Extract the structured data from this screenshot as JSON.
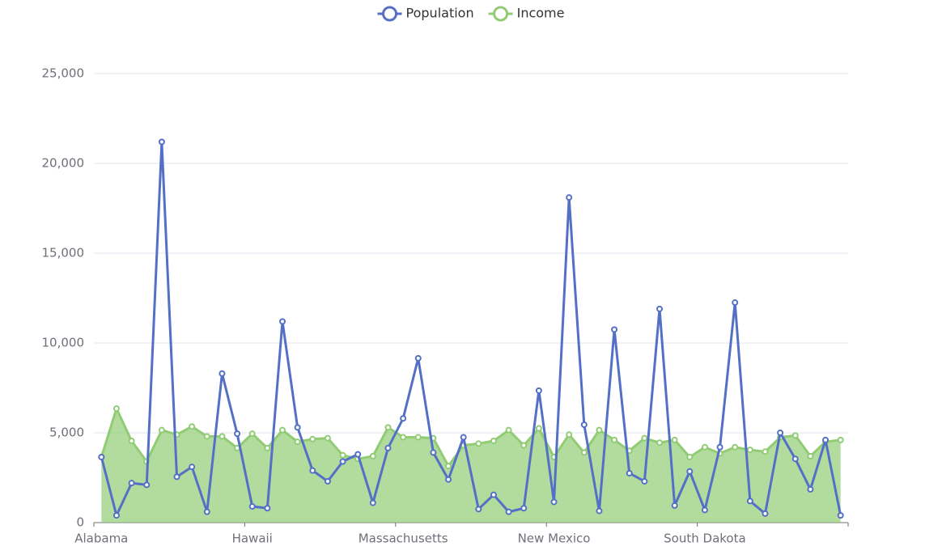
{
  "chart_data": {
    "type": "line",
    "categories": [
      "Alabama",
      null,
      null,
      null,
      null,
      null,
      null,
      null,
      null,
      null,
      "Hawaii",
      null,
      null,
      null,
      null,
      null,
      null,
      null,
      null,
      null,
      "Massachusetts",
      null,
      null,
      null,
      null,
      null,
      null,
      null,
      null,
      null,
      "New Mexico",
      null,
      null,
      null,
      null,
      null,
      null,
      null,
      null,
      null,
      "South Dakota",
      null,
      null,
      null,
      null,
      null,
      null,
      null,
      null,
      null
    ],
    "series": [
      {
        "name": "Population",
        "color": "#5470c6",
        "values": [
          3650,
          400,
          2200,
          2100,
          21200,
          2550,
          3100,
          600,
          8300,
          4950,
          900,
          800,
          11200,
          5300,
          2900,
          2300,
          3400,
          3800,
          1100,
          4150,
          5800,
          9150,
          3900,
          2400,
          4750,
          750,
          1550,
          600,
          800,
          7350,
          1150,
          18100,
          5450,
          650,
          10750,
          2750,
          2300,
          11900,
          950,
          2850,
          700,
          4200,
          12250,
          1200,
          500,
          5000,
          3550,
          1850,
          4600,
          400
        ]
      },
      {
        "name": "Income",
        "color": "#91cc75",
        "area": true,
        "values": [
          3650,
          6350,
          4550,
          3400,
          5150,
          4900,
          5350,
          4800,
          4800,
          4150,
          4950,
          4150,
          5150,
          4500,
          4650,
          4700,
          3750,
          3550,
          3700,
          5300,
          4750,
          4750,
          4700,
          3150,
          4300,
          4400,
          4550,
          5150,
          4300,
          5250,
          3650,
          4900,
          3900,
          5150,
          4600,
          4000,
          4700,
          4450,
          4600,
          3650,
          4200,
          3850,
          4200,
          4050,
          3950,
          4750,
          4850,
          3700,
          4500,
          4600
        ]
      }
    ],
    "ylim": [
      0,
      25000
    ],
    "yticks": [
      0,
      {
        "value": 5000,
        "label": "5,000"
      },
      {
        "value": 10000,
        "label": "10,000"
      },
      {
        "value": 15000,
        "label": "15,000"
      },
      {
        "value": 20000,
        "label": "20,000"
      },
      {
        "value": 25000,
        "label": "25,000"
      }
    ],
    "grid": true,
    "legend": "top"
  }
}
